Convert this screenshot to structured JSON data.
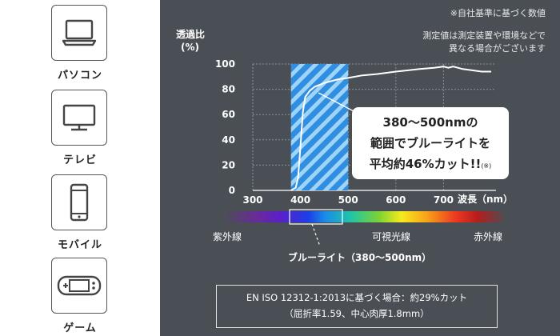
{
  "devices": [
    {
      "label": "パソコン",
      "icon": "laptop-icon"
    },
    {
      "label": "テレビ",
      "icon": "tv-icon"
    },
    {
      "label": "モバイル",
      "icon": "smartphone-icon"
    },
    {
      "label": "ゲーム",
      "icon": "game-console-icon"
    }
  ],
  "notes": {
    "line1": "※自社基準に基づく数値",
    "line2": "測定値は測定装置や環境などで",
    "line3": "異なる場合がございます"
  },
  "callout": {
    "line1": "380～500nmの",
    "line2": "範囲でブルーライトを",
    "line3": "平均約46%カット!!",
    "mark": "(※)"
  },
  "spectrum": {
    "left_label": "紫外線",
    "center_label": "可視光線",
    "right_label": "赤外線",
    "bluelight_label": "ブルーライト（380～500nm）"
  },
  "standard_box": {
    "line1": "EN ISO 12312-1:2013に基づく場合：約29%カット",
    "line2": "（屈折率1.59、中心肉厚1.8mm）"
  },
  "colors": {
    "panel_bg": "#4a4f55",
    "blue_band": "#2f8ee0",
    "blue_stripe": "#9fd3f7"
  },
  "chart_data": {
    "type": "line",
    "ylabel_line1": "透過比",
    "ylabel_line2": "(%)",
    "xlabel": "波長（nm）",
    "xlim": [
      300,
      810
    ],
    "ylim": [
      0,
      100
    ],
    "x_ticks": [
      300,
      400,
      500,
      600,
      700
    ],
    "y_ticks": [
      0,
      20,
      40,
      60,
      80,
      100
    ],
    "grid": true,
    "highlight_range": [
      380,
      500
    ],
    "series": [
      {
        "x": [
          380,
          390,
          395,
          400,
          405,
          410,
          420,
          430,
          450,
          480,
          500,
          530,
          560,
          600,
          650,
          680,
          700,
          710,
          720,
          730,
          740,
          760,
          780,
          800
        ],
        "y": [
          0,
          2,
          10,
          35,
          62,
          74,
          79,
          82,
          85,
          88,
          89,
          91,
          92,
          94,
          96,
          97,
          98,
          97,
          98,
          97,
          96,
          95,
          94,
          94
        ]
      }
    ]
  }
}
